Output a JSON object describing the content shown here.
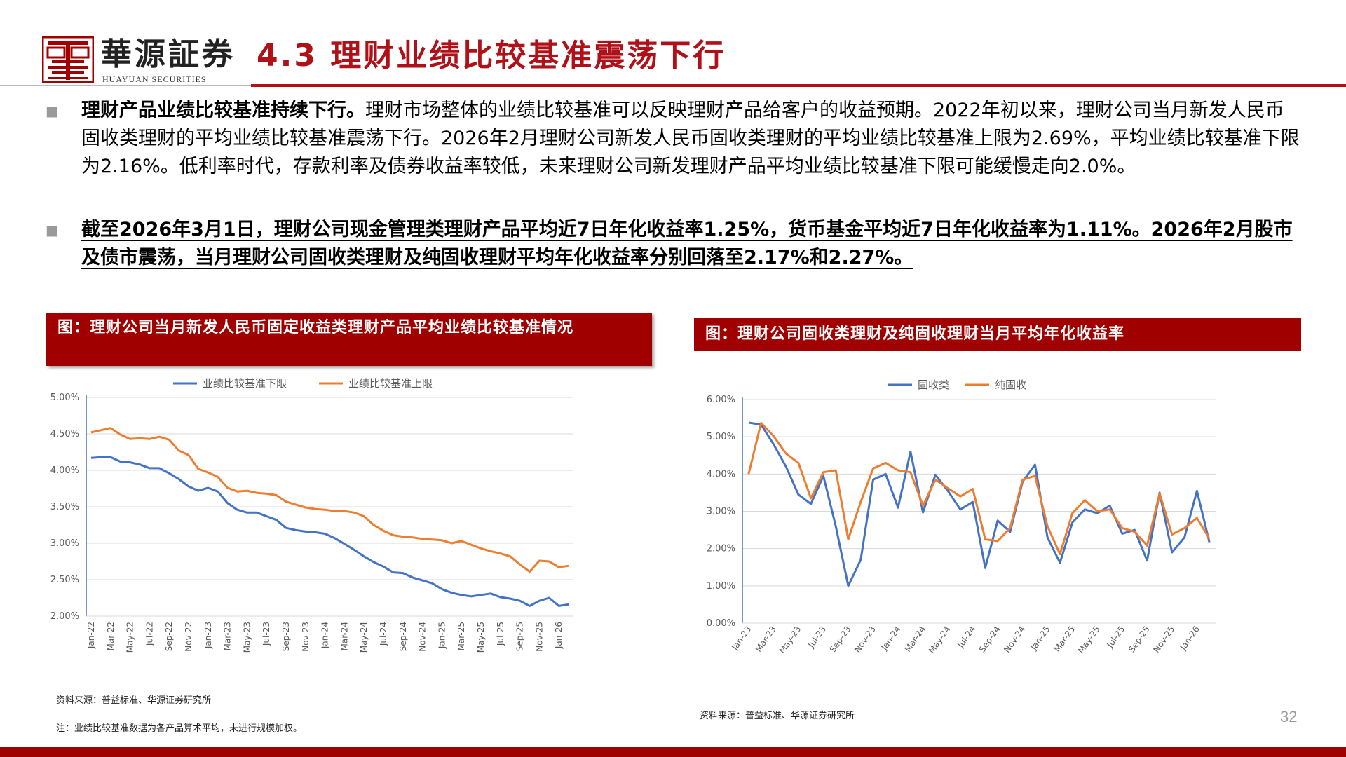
{
  "header": {
    "brand_cn": "華源証券",
    "brand_en": "HUAYUAN SECURITIES",
    "title": "4.3 理财业绩比较基准震荡下行"
  },
  "paragraphs": {
    "p1_bold": "理财产品业绩比较基准持续下行。",
    "p1_rest": "理财市场整体的业绩比较基准可以反映理财产品给客户的收益预期。2022年初以来，理财公司当月新发人民币固收类理财的平均业绩比较基准震荡下行。2026年2月理财公司新发人民币固收类理财的平均业绩比较基准上限为2.69%，平均业绩比较基准下限为2.16%。低利率时代，存款利率及债券收益率较低，未来理财公司新发理财产品平均业绩比较基准下限可能缓慢走向2.0%。",
    "p2": "截至2026年3月1日，理财公司现金管理类理财产品平均近7日年化收益率1.25%，货币基金平均近7日年化收益率为1.11%。2026年2月股市及债市震荡，当月理财公司固收类理财及纯固收理财平均年化收益率分别回落至2.17%和2.27%。"
  },
  "figures": {
    "left_title": "图：理财公司当月新发人民币固定收益类理财产品平均业绩比较基准情况",
    "right_title": "图：理财公司固收类理财及纯固收理财当月平均年化收益率",
    "left_source": "资料来源：普益标准、华源证券研究所",
    "left_note": "注：业绩比较基准数据为各产品算术平均，未进行规模加权。",
    "right_source": "资料来源：普益标准、华源证券研究所"
  },
  "page_number": "32",
  "colors": {
    "accent": "#a00000",
    "blue": "#4472c4",
    "orange": "#ed7d31"
  },
  "chart_data": [
    {
      "type": "line",
      "title": "图：理财公司当月新发人民币固定收益类理财产品平均业绩比较基准情况",
      "x": [
        "Jan-22",
        "Feb-22",
        "Mar-22",
        "Apr-22",
        "May-22",
        "Jun-22",
        "Jul-22",
        "Aug-22",
        "Sep-22",
        "Oct-22",
        "Nov-22",
        "Dec-22",
        "Jan-23",
        "Feb-23",
        "Mar-23",
        "Apr-23",
        "May-23",
        "Jun-23",
        "Jul-23",
        "Aug-23",
        "Sep-23",
        "Oct-23",
        "Nov-23",
        "Dec-23",
        "Jan-24",
        "Feb-24",
        "Mar-24",
        "Apr-24",
        "May-24",
        "Jun-24",
        "Jul-24",
        "Aug-24",
        "Sep-24",
        "Oct-24",
        "Nov-24",
        "Dec-24",
        "Jan-25",
        "Feb-25",
        "Mar-25",
        "Apr-25",
        "May-25",
        "Jun-25",
        "Jul-25",
        "Aug-25",
        "Sep-25",
        "Oct-25",
        "Nov-25",
        "Dec-25",
        "Jan-26",
        "Feb-26"
      ],
      "x_tick_labels": [
        "Jan-22",
        "Mar-22",
        "May-22",
        "Jul-22",
        "Sep-22",
        "Nov-22",
        "Jan-23",
        "Mar-23",
        "May-23",
        "Jul-23",
        "Sep-23",
        "Nov-23",
        "Jan-24",
        "Mar-24",
        "May-24",
        "Jul-24",
        "Sep-24",
        "Nov-24",
        "Jan-25",
        "Mar-25",
        "May-25",
        "Jul-25",
        "Sep-25",
        "Nov-25",
        "Jan-26"
      ],
      "y_tick_labels": [
        "2.00%",
        "2.50%",
        "3.00%",
        "3.50%",
        "4.00%",
        "4.50%",
        "5.00%"
      ],
      "ylim": [
        2.0,
        5.0
      ],
      "ytick_step": 0.5,
      "legend_position": "top-center",
      "series": [
        {
          "name": "业绩比较基准下限",
          "color": "#4472c4",
          "values": [
            4.17,
            4.18,
            4.18,
            4.12,
            4.11,
            4.08,
            4.03,
            4.03,
            3.96,
            3.88,
            3.78,
            3.72,
            3.76,
            3.71,
            3.55,
            3.46,
            3.42,
            3.42,
            3.37,
            3.32,
            3.21,
            3.18,
            3.16,
            3.15,
            3.13,
            3.07,
            2.99,
            2.91,
            2.82,
            2.74,
            2.68,
            2.6,
            2.59,
            2.53,
            2.49,
            2.45,
            2.37,
            2.32,
            2.29,
            2.27,
            2.29,
            2.31,
            2.26,
            2.24,
            2.21,
            2.14,
            2.21,
            2.25,
            2.14,
            2.16
          ]
        },
        {
          "name": "业绩比较基准上限",
          "color": "#ed7d31",
          "values": [
            4.52,
            4.55,
            4.58,
            4.49,
            4.43,
            4.44,
            4.43,
            4.46,
            4.42,
            4.27,
            4.21,
            4.02,
            3.97,
            3.91,
            3.76,
            3.71,
            3.72,
            3.69,
            3.68,
            3.66,
            3.57,
            3.53,
            3.49,
            3.47,
            3.46,
            3.44,
            3.44,
            3.42,
            3.37,
            3.25,
            3.17,
            3.11,
            3.09,
            3.08,
            3.06,
            3.05,
            3.04,
            3.0,
            3.03,
            2.98,
            2.93,
            2.89,
            2.86,
            2.82,
            2.71,
            2.61,
            2.76,
            2.75,
            2.67,
            2.69
          ]
        }
      ]
    },
    {
      "type": "line",
      "title": "图：理财公司固收类理财及纯固收理财当月平均年化收益率",
      "x": [
        "Jan-23",
        "Feb-23",
        "Mar-23",
        "Apr-23",
        "May-23",
        "Jun-23",
        "Jul-23",
        "Aug-23",
        "Sep-23",
        "Oct-23",
        "Nov-23",
        "Dec-23",
        "Jan-24",
        "Feb-24",
        "Mar-24",
        "Apr-24",
        "May-24",
        "Jun-24",
        "Jul-24",
        "Aug-24",
        "Sep-24",
        "Oct-24",
        "Nov-24",
        "Dec-24",
        "Jan-25",
        "Feb-25",
        "Mar-25",
        "Apr-25",
        "May-25",
        "Jun-25",
        "Jul-25",
        "Aug-25",
        "Sep-25",
        "Oct-25",
        "Nov-25",
        "Dec-25",
        "Jan-26",
        "Feb-26"
      ],
      "x_tick_labels": [
        "Jan-23",
        "Mar-23",
        "May-23",
        "Jul-23",
        "Sep-23",
        "Nov-23",
        "Jan-24",
        "Mar-24",
        "May-24",
        "Jul-24",
        "Sep-24",
        "Nov-24",
        "Jan-25",
        "Mar-25",
        "May-25",
        "Jul-25",
        "Sep-25",
        "Nov-25",
        "Jan-26"
      ],
      "y_tick_labels": [
        "0.00%",
        "1.00%",
        "2.00%",
        "3.00%",
        "4.00%",
        "5.00%",
        "6.00%"
      ],
      "ylim": [
        0,
        6.0
      ],
      "ytick_step": 1.0,
      "legend_position": "top-center",
      "series": [
        {
          "name": "固收类",
          "color": "#4472c4",
          "values": [
            5.38,
            5.33,
            4.8,
            4.2,
            3.45,
            3.2,
            3.95,
            2.6,
            1.0,
            1.7,
            3.85,
            4.0,
            3.1,
            4.6,
            2.97,
            3.98,
            3.55,
            3.05,
            3.25,
            1.48,
            2.75,
            2.45,
            3.8,
            4.25,
            2.3,
            1.62,
            2.7,
            3.05,
            2.95,
            3.15,
            2.4,
            2.5,
            1.68,
            3.5,
            1.9,
            2.3,
            3.55,
            2.17
          ]
        },
        {
          "name": "纯固收",
          "color": "#ed7d31",
          "values": [
            4.0,
            5.37,
            5.02,
            4.55,
            4.3,
            3.35,
            4.05,
            4.1,
            2.25,
            3.25,
            4.15,
            4.3,
            4.1,
            4.05,
            3.15,
            3.85,
            3.62,
            3.4,
            3.6,
            2.25,
            2.2,
            2.55,
            3.85,
            3.95,
            2.6,
            1.85,
            2.95,
            3.3,
            3.0,
            3.05,
            2.55,
            2.45,
            2.08,
            3.48,
            2.38,
            2.55,
            2.82,
            2.27
          ]
        }
      ]
    }
  ]
}
